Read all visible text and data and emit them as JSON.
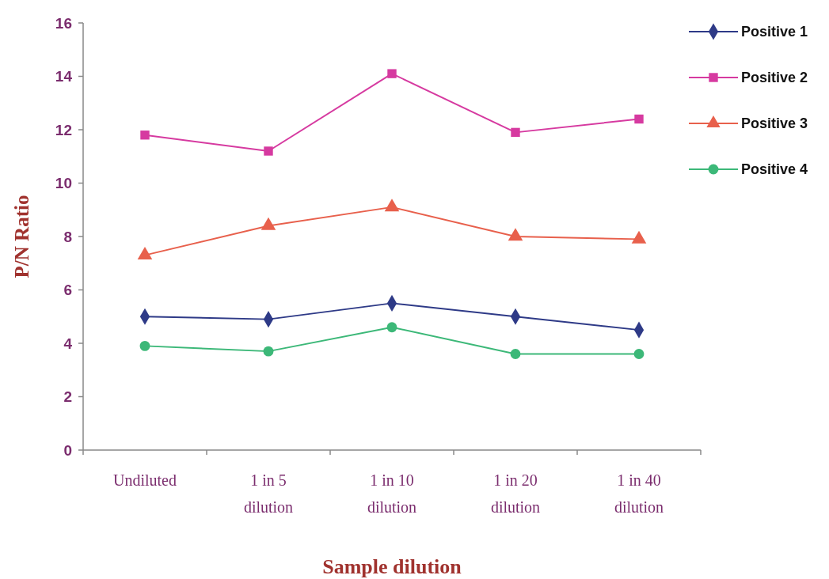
{
  "chart_data": {
    "type": "line",
    "xlabel": "Sample dilution",
    "ylabel": "P/N Ratio",
    "categories": [
      "Undiluted",
      "1 in 5\ndilution",
      "1 in 10\ndilution",
      "1 in 20\ndilution",
      "1 in 40\ndilution"
    ],
    "ylim": [
      0,
      16
    ],
    "yticks": [
      0,
      2,
      4,
      6,
      8,
      10,
      12,
      14,
      16
    ],
    "grid": false,
    "legend": "top right",
    "line_style": "solid",
    "series": [
      {
        "name": "Positive 1",
        "color": "#2e3a87",
        "marker": "diamond",
        "values": [
          5.0,
          4.9,
          5.5,
          5.0,
          4.5
        ]
      },
      {
        "name": "Positive 2",
        "color": "#d63aa0",
        "marker": "square",
        "values": [
          11.8,
          11.2,
          14.1,
          11.9,
          12.4
        ]
      },
      {
        "name": "Positive 3",
        "color": "#e8604c",
        "marker": "triangle",
        "values": [
          7.3,
          8.4,
          9.1,
          8.0,
          7.9
        ]
      },
      {
        "name": "Positive 4",
        "color": "#3cb878",
        "marker": "circle",
        "values": [
          3.9,
          3.7,
          4.6,
          3.6,
          3.6
        ]
      }
    ]
  }
}
